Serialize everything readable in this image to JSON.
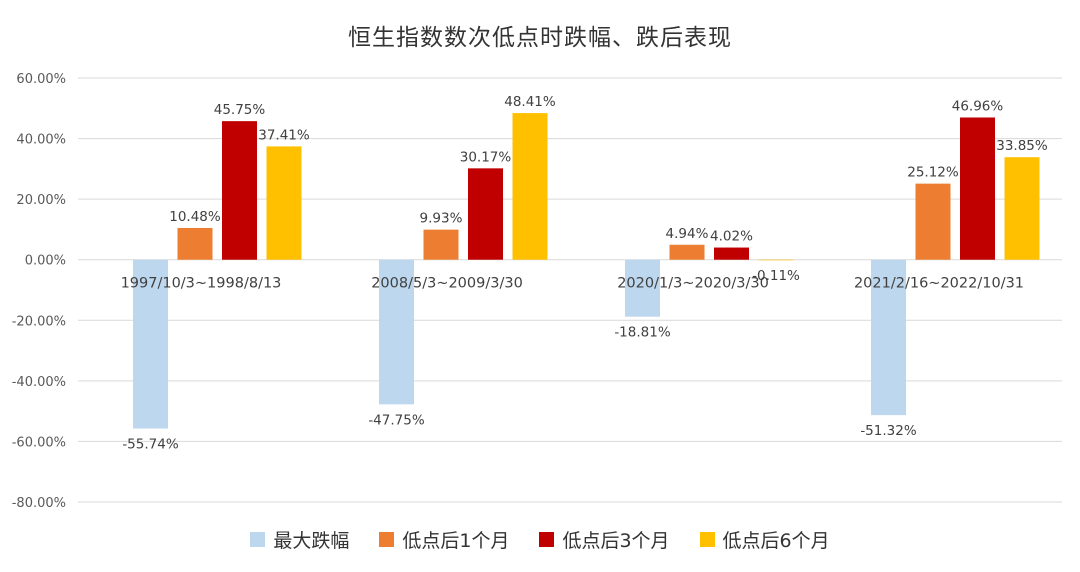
{
  "chart_data": {
    "type": "bar",
    "title": "恒生指数数次低点时跌幅、跌后表现",
    "categories": [
      "1997/10/3~1998/8/13",
      "2008/5/3~2009/3/30",
      "2020/1/3~2020/3/30",
      "2021/2/16~2022/10/31"
    ],
    "series": [
      {
        "name": "最大跌幅",
        "color": "#bdd7ee",
        "values": [
          -55.74,
          -47.75,
          -18.81,
          -51.32
        ],
        "labels": [
          "-55.74%",
          "-47.75%",
          "-18.81%",
          "-51.32%"
        ]
      },
      {
        "name": "低点后1个月",
        "color": "#ed7d31",
        "values": [
          10.48,
          9.93,
          4.94,
          25.12
        ],
        "labels": [
          "10.48%",
          "9.93%",
          "4.94%",
          "25.12%"
        ]
      },
      {
        "name": "低点后3个月",
        "color": "#c00000",
        "values": [
          45.75,
          30.17,
          4.02,
          46.96
        ],
        "labels": [
          "45.75%",
          "30.17%",
          "4.02%",
          "46.96%"
        ]
      },
      {
        "name": "低点后6个月",
        "color": "#ffc000",
        "values": [
          37.41,
          48.41,
          -0.11,
          33.85
        ],
        "labels": [
          "37.41%",
          "48.41%",
          "-0.11%",
          "33.85%"
        ]
      }
    ],
    "ylim": [
      -80,
      60
    ],
    "yticks": [
      60,
      40,
      20,
      0,
      -20,
      -40,
      -60,
      -80
    ],
    "ytick_labels": [
      "60.00%",
      "40.00%",
      "20.00%",
      "0.00%",
      "-20.00%",
      "-40.00%",
      "-60.00%",
      "-80.00%"
    ],
    "grid": true,
    "legend_position": "bottom"
  }
}
